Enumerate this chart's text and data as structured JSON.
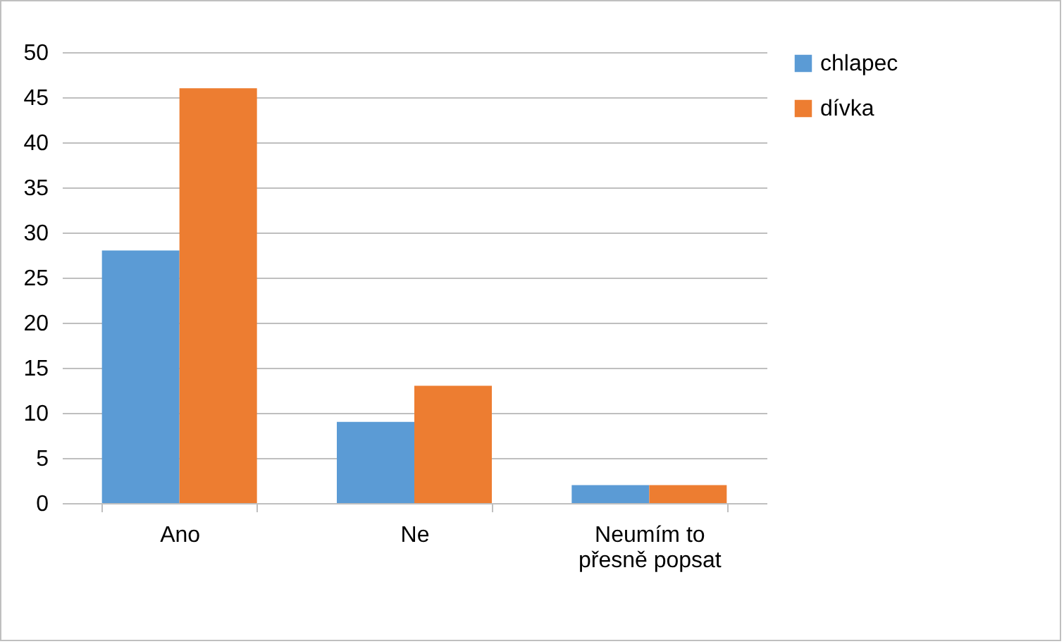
{
  "chart_data": {
    "type": "bar",
    "categories": [
      "Ano",
      "Ne",
      "Neumím to přesně popsat"
    ],
    "series": [
      {
        "name": "chlapec",
        "color": "#5b9bd5",
        "values": [
          28,
          9,
          2
        ]
      },
      {
        "name": "dívka",
        "color": "#ed7d31",
        "values": [
          46,
          13,
          2
        ]
      }
    ],
    "ylim": [
      0,
      50
    ],
    "yticks": [
      0,
      5,
      10,
      15,
      20,
      25,
      30,
      35,
      40,
      45,
      50
    ],
    "grid": "y",
    "legend": "right"
  }
}
